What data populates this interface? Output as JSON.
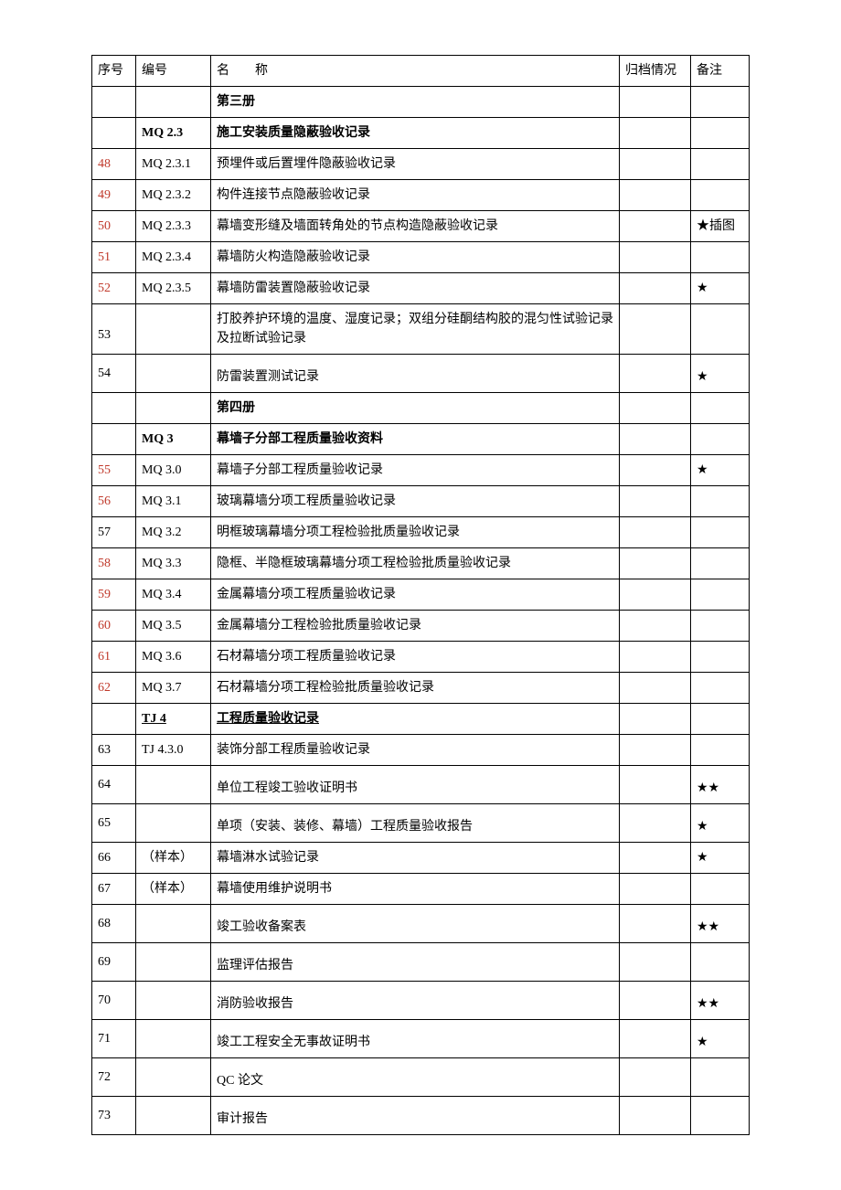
{
  "columns": {
    "seq": "序号",
    "code": "编号",
    "name_prefix": "名",
    "name_suffix": "称",
    "arch": "归档情况",
    "note": "备注"
  },
  "rows": [
    {
      "seq": "",
      "code": "",
      "name": "第三册",
      "name_cls": "bold",
      "arch": "",
      "note": ""
    },
    {
      "seq": "",
      "code": "MQ 2.3",
      "code_cls": "bold",
      "name": "施工安装质量隐蔽验收记录",
      "name_cls": "bold",
      "arch": "",
      "note": ""
    },
    {
      "seq": "48",
      "seq_cls": "red",
      "code": "MQ 2.3.1",
      "name": "预埋件或后置埋件隐蔽验收记录",
      "arch": "",
      "note": ""
    },
    {
      "seq": "49",
      "seq_cls": "red",
      "code": "MQ 2.3.2",
      "name": "构件连接节点隐蔽验收记录",
      "arch": "",
      "note": ""
    },
    {
      "seq": "50",
      "seq_cls": "red",
      "code": "MQ 2.3.3",
      "name": "幕墙变形缝及墙面转角处的节点构造隐蔽验收记录",
      "arch": "",
      "note": "★插图"
    },
    {
      "seq": "51",
      "seq_cls": "red",
      "code": "MQ 2.3.4",
      "name": "幕墙防火构造隐蔽验收记录",
      "arch": "",
      "note": ""
    },
    {
      "seq": "52",
      "seq_cls": "red",
      "code": "MQ 2.3.5",
      "name": "幕墙防雷装置隐蔽验收记录",
      "arch": "",
      "note": "★"
    },
    {
      "seq": "53",
      "code": "",
      "name": "打胶养护环境的温度、湿度记录；双组分硅酮结构胶的混匀性试验记录及拉断试验记录",
      "arch": "",
      "note": ""
    },
    {
      "seq": "54",
      "code": "",
      "name": "防雷装置测试记录",
      "arch": "",
      "note": "★"
    },
    {
      "seq": "",
      "code": "",
      "name": "第四册",
      "name_cls": "bold",
      "arch": "",
      "note": ""
    },
    {
      "seq": "",
      "code": "MQ 3",
      "code_cls": "bold",
      "name": "幕墙子分部工程质量验收资料",
      "name_cls": "bold",
      "arch": "",
      "note": ""
    },
    {
      "seq": "55",
      "seq_cls": "red",
      "code": "MQ 3.0",
      "name": "幕墙子分部工程质量验收记录",
      "arch": "",
      "note": "★"
    },
    {
      "seq": "56",
      "seq_cls": "red",
      "code": "MQ 3.1",
      "name": "玻璃幕墙分项工程质量验收记录",
      "arch": "",
      "note": ""
    },
    {
      "seq": "57",
      "code": "MQ 3.2",
      "name": "明框玻璃幕墙分项工程检验批质量验收记录",
      "arch": "",
      "note": ""
    },
    {
      "seq": "58",
      "seq_cls": "red",
      "code": "MQ 3.3",
      "name": "隐框、半隐框玻璃幕墙分项工程检验批质量验收记录",
      "arch": "",
      "note": ""
    },
    {
      "seq": "59",
      "seq_cls": "red",
      "code": "MQ 3.4",
      "name": "金属幕墙分项工程质量验收记录",
      "arch": "",
      "note": ""
    },
    {
      "seq": "60",
      "seq_cls": "red",
      "code": "MQ 3.5",
      "name": "金属幕墙分工程检验批质量验收记录",
      "arch": "",
      "note": ""
    },
    {
      "seq": "61",
      "seq_cls": "red",
      "code": "MQ 3.6",
      "name": "石材幕墙分项工程质量验收记录",
      "arch": "",
      "note": ""
    },
    {
      "seq": "62",
      "seq_cls": "red",
      "code": "MQ 3.7",
      "name": "石材幕墙分项工程检验批质量验收记录",
      "arch": "",
      "note": ""
    },
    {
      "seq": "",
      "code": "TJ 4",
      "code_cls": "bold-u",
      "name": "工程质量验收记录",
      "name_cls": "bold-u",
      "arch": "",
      "note": ""
    },
    {
      "seq": "63",
      "code": "TJ 4.3.0",
      "name": "装饰分部工程质量验收记录",
      "arch": "",
      "note": ""
    },
    {
      "seq": "64",
      "code": "",
      "name": "单位工程竣工验收证明书",
      "arch": "",
      "note": "★★"
    },
    {
      "seq": "65",
      "code": "",
      "name": "单项（安装、装修、幕墙）工程质量验收报告",
      "arch": "",
      "note": "★"
    },
    {
      "seq": "66",
      "code": "（样本）",
      "name": "幕墙淋水试验记录",
      "arch": "",
      "note": "★"
    },
    {
      "seq": "67",
      "code": "（样本）",
      "name": "幕墙使用维护说明书",
      "arch": "",
      "note": ""
    },
    {
      "seq": "68",
      "code": "",
      "name": "竣工验收备案表",
      "arch": "",
      "note": "★★"
    },
    {
      "seq": "69",
      "code": "",
      "name": "监理评估报告",
      "arch": "",
      "note": ""
    },
    {
      "seq": "70",
      "code": "",
      "name": "消防验收报告",
      "arch": "",
      "note": "★★"
    },
    {
      "seq": "71",
      "code": "",
      "name": "竣工工程安全无事故证明书",
      "arch": "",
      "note": "★"
    },
    {
      "seq": "72",
      "code": "",
      "name": "QC 论文",
      "arch": "",
      "note": ""
    },
    {
      "seq": "73",
      "code": "",
      "name": "审计报告",
      "arch": "",
      "note": ""
    }
  ]
}
